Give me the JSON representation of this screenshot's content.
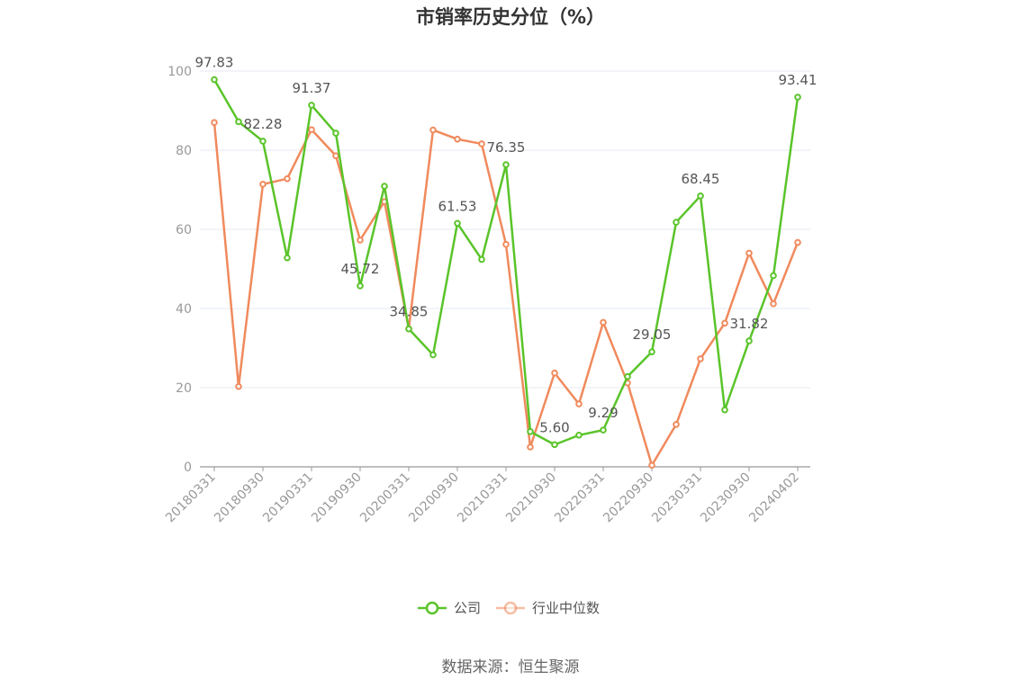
{
  "chart_data": {
    "type": "line",
    "title": "市销率历史分位（%）",
    "source": "数据来源：恒生聚源",
    "ylim": [
      0,
      100
    ],
    "yticks": [
      0,
      20,
      40,
      60,
      80,
      100
    ],
    "grid": true,
    "legend_position": "bottom",
    "x": [
      "20180331",
      "20180630",
      "20180930",
      "20181231",
      "20190331",
      "20190630",
      "20190930",
      "20191231",
      "20200331",
      "20200630",
      "20200930",
      "20201231",
      "20210331",
      "20210630",
      "20210930",
      "20211231",
      "20220331",
      "20220630",
      "20220930",
      "20221231",
      "20230331",
      "20230630",
      "20230930",
      "20231231",
      "20240402"
    ],
    "xtick_labels": [
      "20180331",
      "20180930",
      "20190331",
      "20190930",
      "20200331",
      "20200930",
      "20210331",
      "20210930",
      "20220331",
      "20220930",
      "20230331",
      "20230930",
      "20240402"
    ],
    "series": [
      {
        "name": "公司",
        "color": "#5ac42a",
        "values": [
          97.83,
          87.2,
          82.28,
          52.8,
          91.37,
          84.3,
          45.72,
          70.9,
          34.85,
          28.3,
          61.53,
          52.4,
          76.35,
          8.9,
          5.6,
          8.0,
          9.29,
          22.8,
          29.05,
          61.8,
          68.45,
          14.4,
          31.82,
          48.3,
          93.41
        ],
        "labels": [
          "97.83",
          null,
          "82.28",
          null,
          "91.37",
          null,
          "45.72",
          null,
          "34.85",
          null,
          "61.53",
          null,
          "76.35",
          null,
          "5.60",
          null,
          "9.29",
          null,
          "29.05",
          null,
          "68.45",
          null,
          "31.82",
          null,
          "93.41"
        ]
      },
      {
        "name": "行业中位数",
        "color": "#f08a5d",
        "values": [
          87.0,
          20.3,
          71.4,
          72.8,
          85.2,
          78.6,
          57.3,
          67.0,
          34.9,
          85.1,
          82.8,
          81.6,
          56.2,
          5.0,
          23.7,
          15.9,
          36.5,
          21.2,
          0.4,
          10.7,
          27.3,
          36.3,
          54.0,
          41.2,
          56.7
        ]
      }
    ]
  }
}
